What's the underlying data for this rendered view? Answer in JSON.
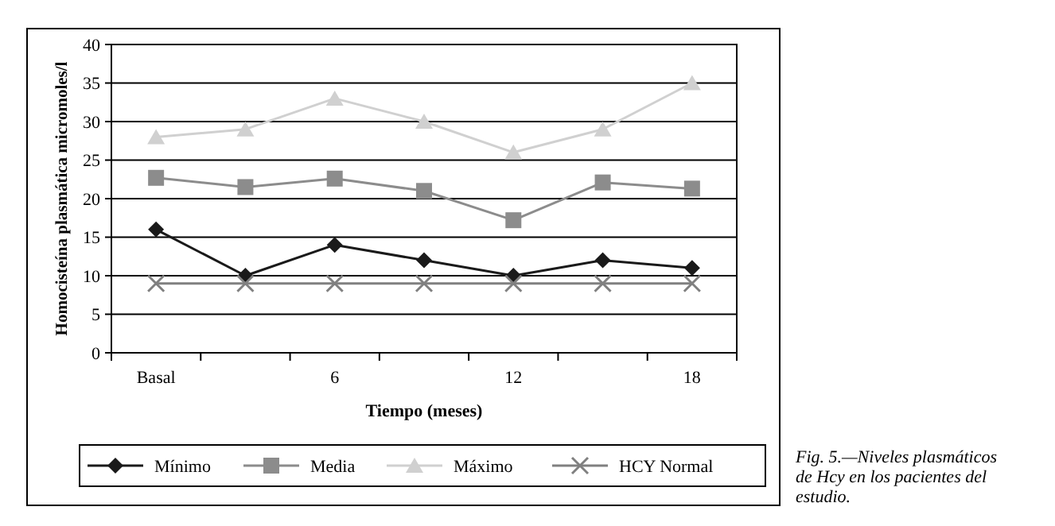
{
  "chart_data": {
    "type": "line",
    "xlabel": "Tiempo (meses)",
    "ylabel": "Homocisteína plasmática micromoles/l",
    "categories": [
      "Basal",
      null,
      "6",
      null,
      "12",
      null,
      "18"
    ],
    "series": [
      {
        "name": "Mínimo",
        "color": "#1a1a1a",
        "marker": "diamond",
        "values": [
          16,
          10,
          14,
          12,
          10,
          12,
          11
        ]
      },
      {
        "name": "Media",
        "color": "#8c8c8c",
        "marker": "square",
        "values": [
          22.7,
          21.5,
          22.6,
          21,
          17.2,
          22.1,
          21.3
        ]
      },
      {
        "name": "Máximo",
        "color": "#d0d0d0",
        "marker": "triangle",
        "values": [
          28,
          29,
          33,
          30,
          26,
          29,
          35
        ]
      },
      {
        "name": "HCY Normal",
        "color": "#808080",
        "marker": "cross",
        "values": [
          9,
          9,
          9,
          9,
          9,
          9,
          9
        ]
      }
    ],
    "ylim": [
      0,
      40
    ],
    "yticks": [
      0,
      5,
      10,
      15,
      20,
      25,
      30,
      35,
      40
    ],
    "grid": "y",
    "legend": "bottom",
    "annotations": [
      "Fig. 5.—Niveles plasmáticos de Hcy en los pacientes del estudio."
    ]
  }
}
